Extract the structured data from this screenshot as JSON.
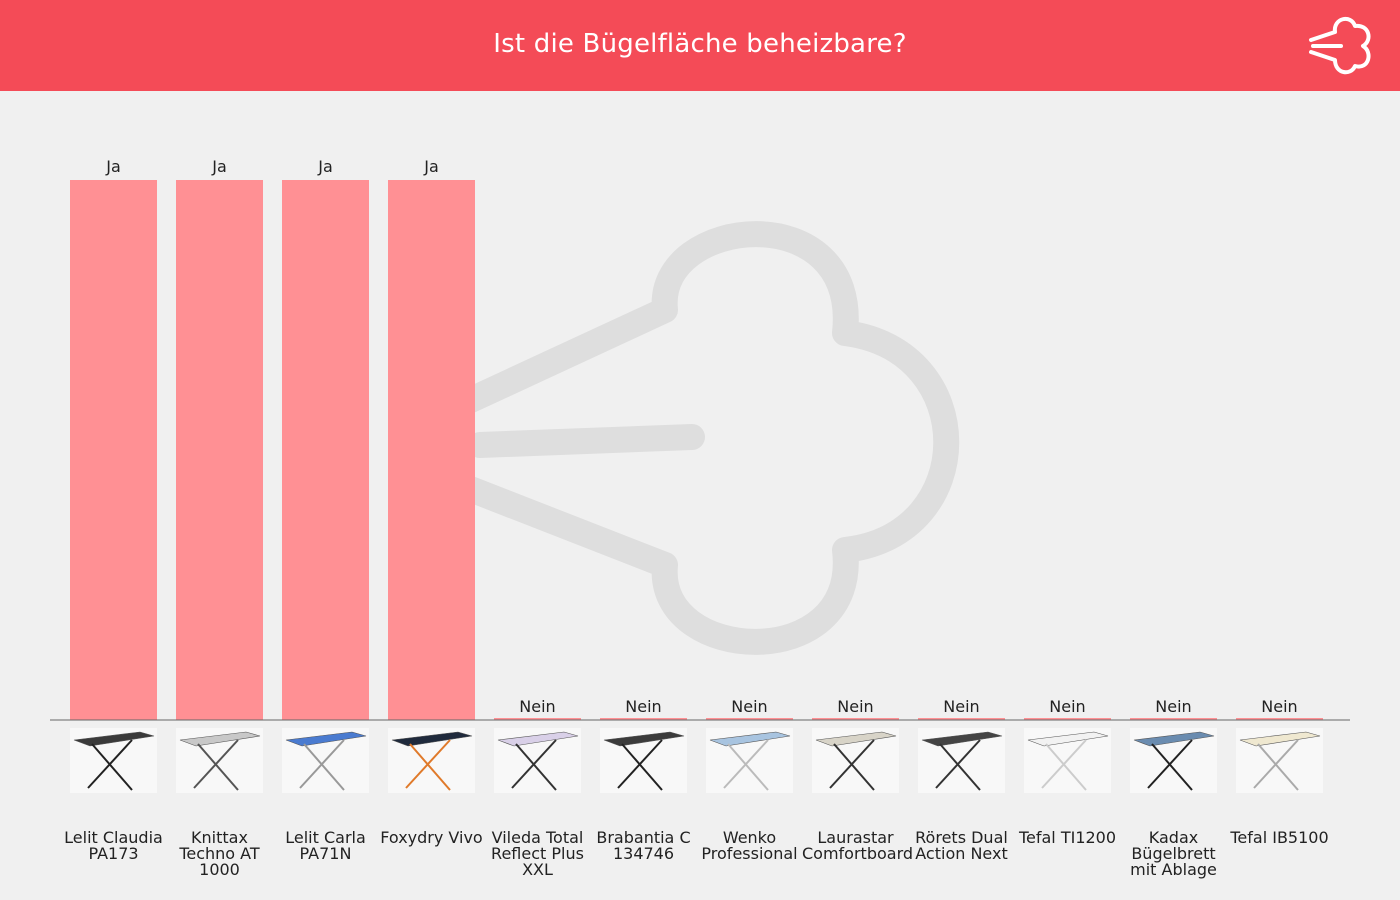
{
  "header": {
    "title": "Ist die Bügelfläche beheizbare?",
    "icon": "steam-cloud-icon",
    "background_color": "#f44b57"
  },
  "watermark": {
    "icon": "steam-cloud-icon"
  },
  "chart_data": {
    "type": "bar",
    "title": "Ist die Bügelfläche beheizbare?",
    "xlabel": "",
    "ylabel": "",
    "categories": [
      "Lelit Claudia PA173",
      "Knittax Techno AT 1000",
      "Lelit Carla PA71N",
      "Foxydry Vivo",
      "Vileda Total Reflect Plus XXL",
      "Brabantia C 134746",
      "Wenko Professional",
      "Laurastar Comfortboard",
      "Rörets Dual Action Next",
      "Tefal TI1200",
      "Kadax Bügelbrett mit Ablage",
      "Tefal IB5100"
    ],
    "values": [
      1,
      1,
      1,
      1,
      0,
      0,
      0,
      0,
      0,
      0,
      0,
      0
    ],
    "value_labels": [
      "Ja",
      "Ja",
      "Ja",
      "Ja",
      "Nein",
      "Nein",
      "Nein",
      "Nein",
      "Nein",
      "Nein",
      "Nein",
      "Nein"
    ],
    "ylim": [
      0,
      1
    ],
    "grid": false,
    "legend": "none",
    "colors": {
      "bar": "#ff9094",
      "baseline": "#666666",
      "text": "#222222"
    },
    "thumbnails": [
      {
        "board": "#3a3a3a",
        "legs": "#222222"
      },
      {
        "board": "#c8c8c8",
        "legs": "#555555"
      },
      {
        "board": "#4a7bd0",
        "legs": "#999999"
      },
      {
        "board": "#1f2a3c",
        "legs": "#e07a2a"
      },
      {
        "board": "#d9d0e8",
        "legs": "#333333"
      },
      {
        "board": "#3b3b3b",
        "legs": "#222222"
      },
      {
        "board": "#a8c4e0",
        "legs": "#bbbbbb"
      },
      {
        "board": "#d8d4c8",
        "legs": "#333333"
      },
      {
        "board": "#444444",
        "legs": "#333333"
      },
      {
        "board": "#f2f2f2",
        "legs": "#cccccc"
      },
      {
        "board": "#6a8cb0",
        "legs": "#222222"
      },
      {
        "board": "#efe8d0",
        "legs": "#aaaaaa"
      }
    ]
  }
}
